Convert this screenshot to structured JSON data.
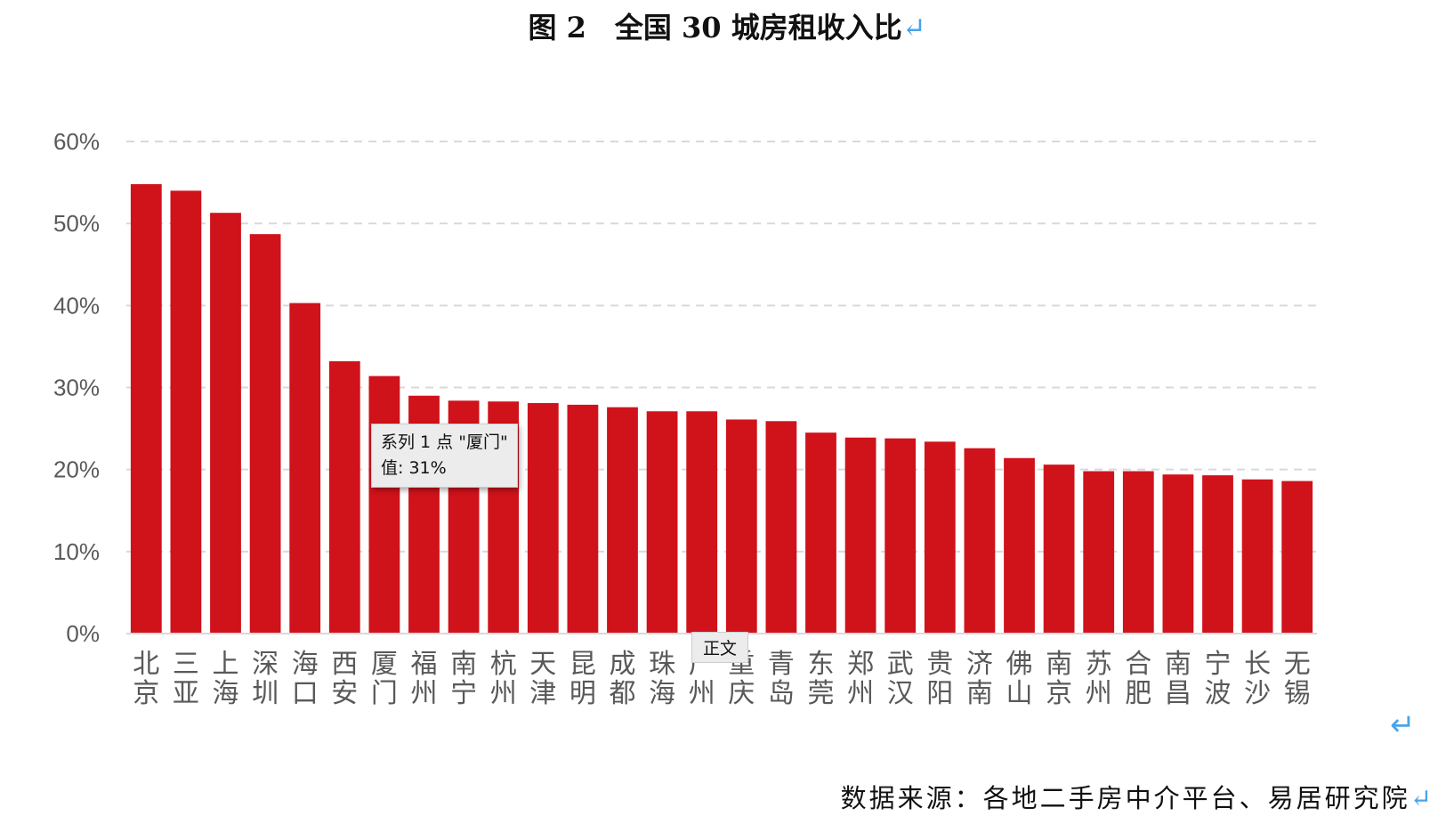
{
  "title": "图 2　全国 30 城房租收入比",
  "source": "数据来源：各地二手房中介平台、易居研究院",
  "return_mark": "↵",
  "tooltip": {
    "line1": "系列 1 点 \"厦门\"",
    "line2": "值: 31%"
  },
  "style_badge": "正文",
  "chart_data": {
    "type": "bar",
    "title": "图 2　全国 30 城房租收入比",
    "categories": [
      "北京",
      "三亚",
      "上海",
      "深圳",
      "海口",
      "西安",
      "厦门",
      "福州",
      "南宁",
      "杭州",
      "天津",
      "昆明",
      "成都",
      "珠海",
      "广州",
      "重庆",
      "青岛",
      "东莞",
      "郑州",
      "武汉",
      "贵阳",
      "济南",
      "佛山",
      "南京",
      "苏州",
      "合肥",
      "南昌",
      "宁波",
      "长沙",
      "无锡"
    ],
    "series": [
      {
        "name": "系列 1",
        "values": [
          54.8,
          54.0,
          51.3,
          48.7,
          40.3,
          33.2,
          31.4,
          29.0,
          28.4,
          28.3,
          28.1,
          27.9,
          27.6,
          27.1,
          27.1,
          26.1,
          25.9,
          24.5,
          23.9,
          23.8,
          23.4,
          22.6,
          21.4,
          20.6,
          19.8,
          19.8,
          19.4,
          19.3,
          18.8,
          18.6
        ]
      }
    ],
    "ylim": [
      0,
      60
    ],
    "yticks": [
      "0%",
      "10%",
      "20%",
      "30%",
      "40%",
      "50%",
      "60%"
    ],
    "grid": true,
    "legend": "none",
    "bar_color": "#d0121b",
    "grid_color": "#d9d9d9"
  }
}
